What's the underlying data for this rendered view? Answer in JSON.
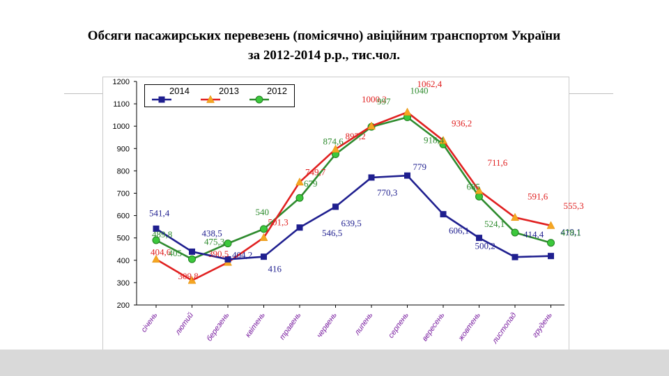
{
  "title": {
    "line1": "Обсяги пасажирських перевезень (помісячно) авіційним транспортом України",
    "line2": "за 2012-2014 р.р., тис.чол."
  },
  "chart_data": {
    "type": "line",
    "categories": [
      "січень",
      "лютий",
      "березень",
      "квітень",
      "травень",
      "червень",
      "липень",
      "серпень",
      "вересень",
      "жовтень",
      "листопад",
      "грудень"
    ],
    "ylim": [
      200,
      1200
    ],
    "yticks": [
      "200",
      "300",
      "400",
      "500",
      "600",
      "700",
      "800",
      "900",
      "1000",
      "1100",
      "1200"
    ],
    "legend_position": "top-left",
    "series": [
      {
        "name": "2014",
        "color": "#1f1f8f",
        "marker": "square",
        "values": [
          541.4,
          438.5,
          404.2,
          416,
          546.5,
          639.5,
          770.3,
          779,
          606.1,
          500.2,
          414.4,
          419.1
        ],
        "labels": [
          "541,4",
          "438,5",
          "404,2",
          "416",
          "546,5",
          "639,5",
          "770,3",
          "779",
          "606,1",
          "500,2",
          "414,4",
          "419,1"
        ]
      },
      {
        "name": "2013",
        "color": "#e02020",
        "marker": "triangle",
        "values": [
          404.6,
          309.8,
          390.5,
          501.3,
          749.7,
          897.2,
          1000.2,
          1062.4,
          936.2,
          711.6,
          591.6,
          555.3
        ],
        "labels": [
          "404,6",
          "309,8",
          "390,5",
          "501,3",
          "749,7",
          "897,2",
          "1000,2",
          "1062,4",
          "936,2",
          "711,6",
          "591,6",
          "555,3"
        ]
      },
      {
        "name": "2012",
        "color": "#2e8b2e",
        "marker": "circle",
        "values": [
          489.8,
          405,
          475.3,
          540,
          679,
          874.6,
          997,
          1040,
          918.4,
          685,
          524.1,
          478.1
        ],
        "labels": [
          "489,8",
          "405",
          "475,3",
          "540",
          "679",
          "874,6",
          "997",
          "1040",
          "918,4",
          "685",
          "524,1",
          "478,1"
        ]
      }
    ]
  }
}
